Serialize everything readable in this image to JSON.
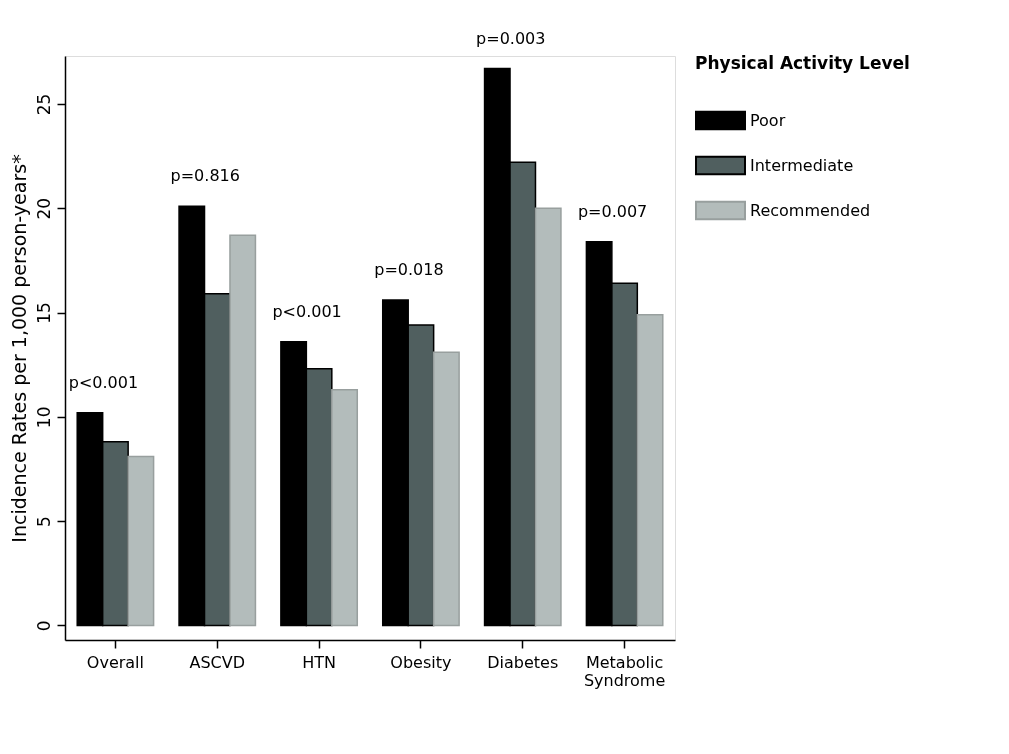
{
  "chart_data": {
    "type": "bar",
    "ylabel": "Incidence Rates per 1,000 person-years*",
    "legend_title": "Physical Activity Level",
    "categories": [
      "Overall",
      "ASCVD",
      "HTN",
      "Obesity",
      "Diabetes",
      "Metabolic Syndrome"
    ],
    "series": [
      {
        "name": "Poor",
        "color": "#000000",
        "values": [
          10.2,
          20.1,
          13.6,
          15.6,
          26.7,
          18.4
        ]
      },
      {
        "name": "Intermediate",
        "color": "#505f5f",
        "values": [
          8.8,
          15.9,
          12.3,
          14.4,
          22.2,
          16.4
        ]
      },
      {
        "name": "Recommended",
        "color": "#b3bcbb",
        "values": [
          8.1,
          18.7,
          11.3,
          13.1,
          20.0,
          14.9
        ]
      }
    ],
    "ylim": [
      -0.7,
      27.3
    ],
    "yticks": [
      0,
      5,
      10,
      15,
      20,
      25
    ],
    "grid": false,
    "legend": "right",
    "annotations": [
      "p<0.001",
      "p=0.816",
      "p<0.001",
      "p=0.018",
      "p=0.003",
      "p=0.007"
    ]
  }
}
